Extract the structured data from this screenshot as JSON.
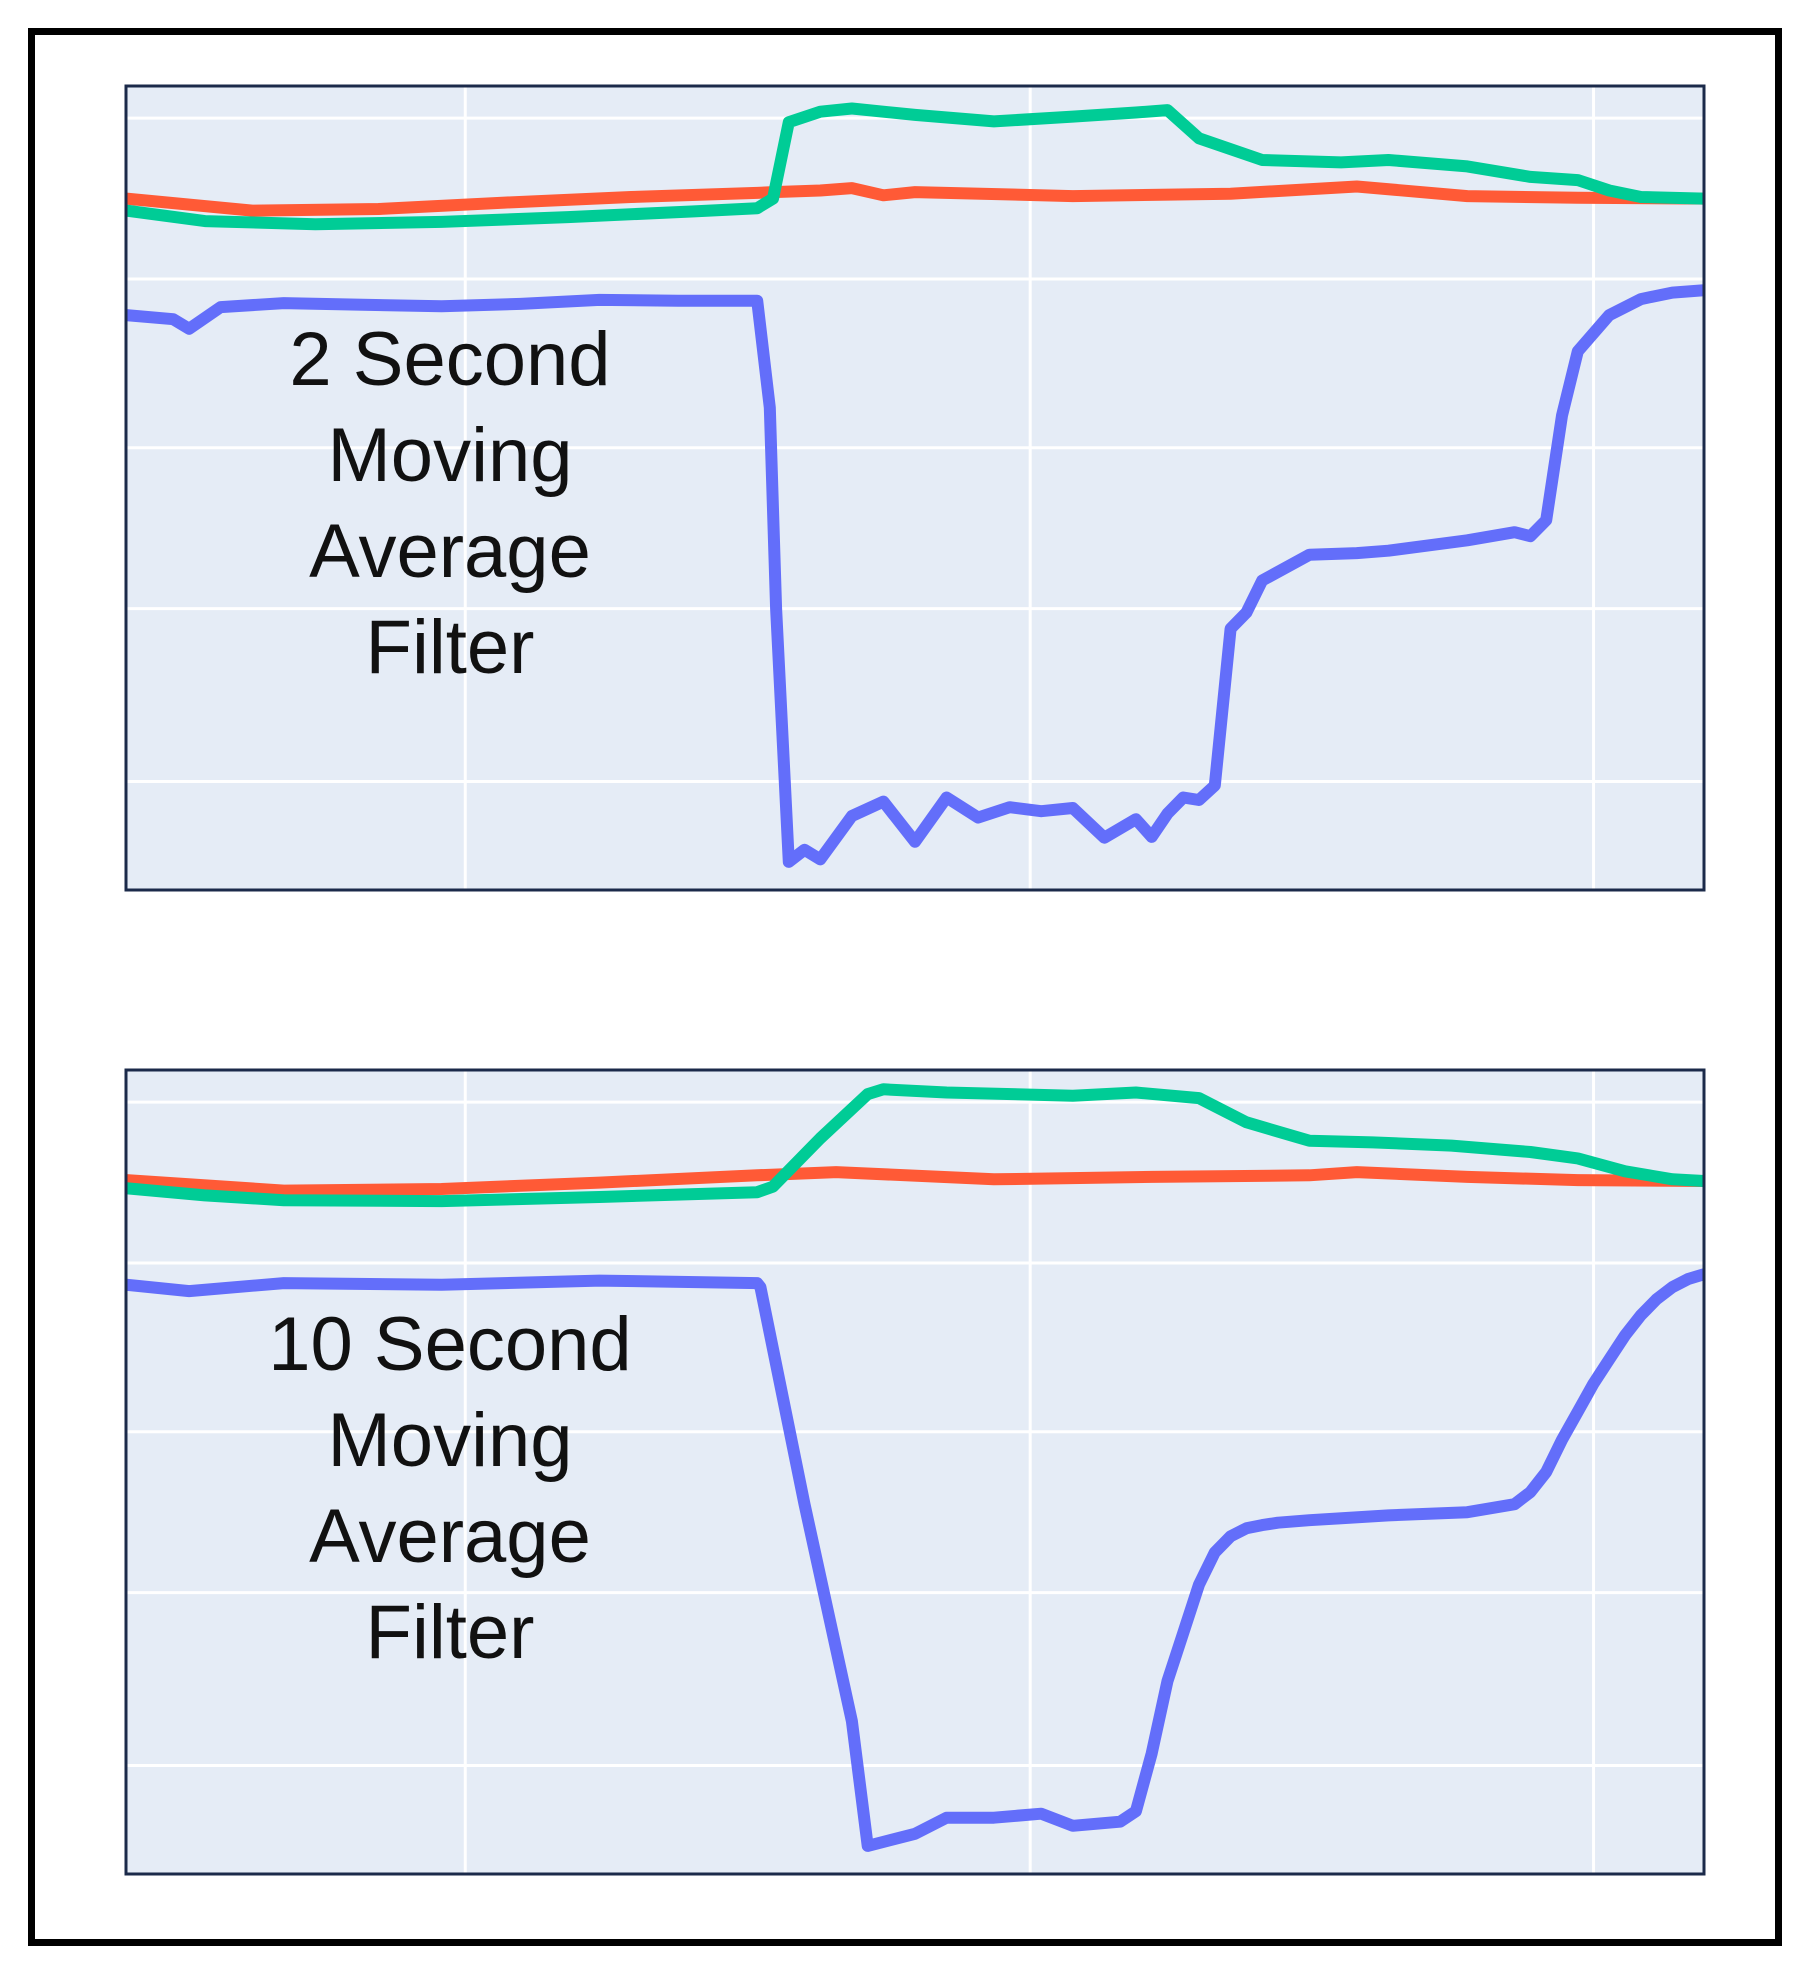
{
  "figure": {
    "border_color": "#000000",
    "plot_bg": "#e5ecf6",
    "grid_color": "#ffffff",
    "axes_border": "#1b2a4a"
  },
  "chart_data": [
    {
      "type": "line",
      "annotation": [
        "2 Second",
        "Moving",
        "Average",
        "Filter"
      ],
      "xlim": [
        0,
        100
      ],
      "ylim": [
        0,
        100
      ],
      "grid": true,
      "series": [
        {
          "color": "#ff5a36",
          "x": [
            0,
            8,
            16,
            24,
            32,
            40,
            41,
            44,
            46,
            48,
            50,
            60,
            70,
            78,
            85,
            92,
            100
          ],
          "y": [
            86.0,
            84.5,
            84.7,
            85.5,
            86.2,
            86.7,
            86.8,
            87.0,
            87.3,
            86.4,
            86.8,
            86.3,
            86.6,
            87.5,
            86.3,
            86.1,
            86.0
          ]
        },
        {
          "color": "#00cc96",
          "x": [
            0,
            5,
            12,
            20,
            28,
            36,
            40,
            41,
            42,
            44,
            46,
            50,
            55,
            60,
            64,
            66,
            68,
            72,
            77,
            80,
            85,
            89,
            92,
            94,
            96,
            100
          ],
          "y": [
            84.5,
            83.2,
            82.8,
            83.1,
            83.7,
            84.4,
            84.8,
            86.0,
            95.5,
            96.8,
            97.2,
            96.4,
            95.6,
            96.2,
            96.7,
            97.0,
            93.5,
            90.8,
            90.5,
            90.8,
            90.0,
            88.7,
            88.3,
            87.0,
            86.2,
            86.0
          ]
        },
        {
          "color": "#636efa",
          "x": [
            0,
            3,
            4,
            6,
            10,
            15,
            20,
            25,
            30,
            35,
            38,
            40,
            40.8,
            41.2,
            42,
            43,
            44,
            46,
            48,
            50,
            52,
            54,
            56,
            58,
            60,
            62,
            64,
            65,
            66,
            67,
            68,
            69,
            70,
            71,
            72,
            75,
            78,
            80,
            85,
            88,
            89,
            90,
            91,
            92,
            94,
            96,
            98,
            100
          ],
          "y": [
            71.5,
            71.0,
            69.8,
            72.5,
            73.0,
            72.8,
            72.6,
            72.9,
            73.4,
            73.3,
            73.3,
            73.3,
            60.0,
            35.0,
            3.5,
            5.0,
            3.8,
            9.2,
            11.0,
            6.0,
            11.5,
            9.0,
            10.3,
            9.8,
            10.2,
            6.5,
            8.8,
            6.6,
            9.5,
            11.5,
            11.2,
            13.0,
            32.5,
            34.5,
            38.5,
            41.7,
            41.9,
            42.2,
            43.5,
            44.5,
            44.0,
            46.0,
            59.0,
            67.0,
            71.5,
            73.5,
            74.3,
            74.6
          ]
        }
      ]
    },
    {
      "type": "line",
      "annotation": [
        "10 Second",
        "Moving",
        "Average",
        "Filter"
      ],
      "xlim": [
        0,
        100
      ],
      "ylim": [
        0,
        100
      ],
      "grid": true,
      "series": [
        {
          "color": "#ff5a36",
          "x": [
            0,
            10,
            20,
            30,
            40,
            45,
            55,
            65,
            75,
            78,
            85,
            92,
            100
          ],
          "y": [
            86.3,
            85.0,
            85.2,
            86.0,
            86.9,
            87.3,
            86.4,
            86.7,
            86.9,
            87.3,
            86.7,
            86.3,
            86.2
          ]
        },
        {
          "color": "#00cc96",
          "x": [
            0,
            5,
            10,
            20,
            30,
            40,
            41,
            44,
            47,
            48,
            52,
            60,
            64,
            68,
            71,
            75,
            79,
            84,
            89,
            92,
            95,
            98,
            100
          ],
          "y": [
            85.3,
            84.4,
            83.8,
            83.7,
            84.2,
            84.8,
            85.5,
            91.5,
            97.0,
            97.6,
            97.2,
            96.8,
            97.2,
            96.5,
            93.5,
            91.2,
            91.0,
            90.6,
            89.8,
            89.0,
            87.4,
            86.4,
            86.2
          ]
        },
        {
          "color": "#636efa",
          "x": [
            0,
            4,
            10,
            20,
            30,
            40,
            40.2,
            43,
            46,
            47,
            50,
            52,
            55,
            58,
            60,
            63,
            64,
            65,
            66,
            67,
            68,
            69,
            70,
            71,
            72,
            73,
            75,
            80,
            85,
            88,
            89,
            90,
            91,
            92,
            93,
            94,
            95,
            96,
            97,
            98,
            99,
            100
          ],
          "y": [
            73.3,
            72.5,
            73.5,
            73.3,
            73.8,
            73.5,
            73.0,
            46.0,
            19.0,
            3.5,
            5.0,
            7.0,
            7.0,
            7.5,
            6.0,
            6.5,
            7.8,
            15.0,
            24.0,
            30.0,
            36.0,
            40.0,
            42.0,
            43.0,
            43.4,
            43.7,
            44.0,
            44.6,
            45.0,
            46.0,
            47.5,
            50.0,
            54.0,
            57.5,
            61.0,
            64.0,
            67.0,
            69.5,
            71.5,
            73.0,
            74.0,
            74.6
          ]
        }
      ]
    }
  ]
}
